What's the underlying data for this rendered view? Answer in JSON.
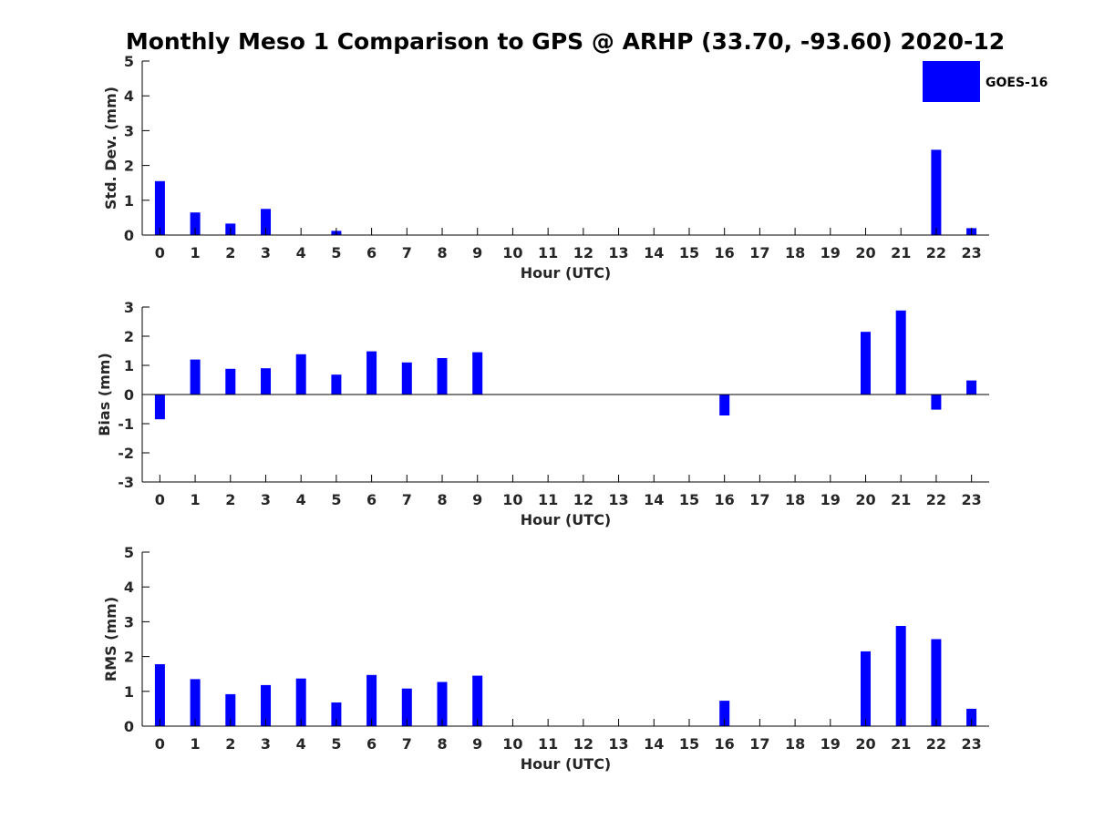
{
  "title": "Monthly Meso 1 Comparison to GPS @ ARHP (33.70, -93.60) 2020-12",
  "legend": {
    "label": "GOES-16",
    "color": "#0000ff",
    "placement": "top-right"
  },
  "chart_data": [
    {
      "type": "bar",
      "ylabel": "Std. Dev. (mm)",
      "xlabel": "Hour (UTC)",
      "ylim": [
        0,
        5
      ],
      "yticks": [
        "0",
        "1",
        "2",
        "3",
        "4",
        "5"
      ],
      "categories": [
        "0",
        "1",
        "2",
        "3",
        "4",
        "5",
        "6",
        "7",
        "8",
        "9",
        "10",
        "11",
        "12",
        "13",
        "14",
        "15",
        "16",
        "17",
        "18",
        "19",
        "20",
        "21",
        "22",
        "23"
      ],
      "series": [
        {
          "color": "#0000ff",
          "values": [
            1.55,
            0.65,
            0.33,
            0.75,
            0,
            0.12,
            0,
            0,
            0,
            0,
            0,
            0,
            0,
            0,
            0,
            0,
            0,
            0,
            0,
            0,
            0,
            0,
            2.45,
            0.2
          ]
        }
      ],
      "grid": false
    },
    {
      "type": "bar",
      "ylabel": "Bias (mm)",
      "xlabel": "Hour (UTC)",
      "ylim": [
        -3,
        3
      ],
      "yticks": [
        "-3",
        "-2",
        "-1",
        "0",
        "1",
        "2",
        "3"
      ],
      "categories": [
        "0",
        "1",
        "2",
        "3",
        "4",
        "5",
        "6",
        "7",
        "8",
        "9",
        "10",
        "11",
        "12",
        "13",
        "14",
        "15",
        "16",
        "17",
        "18",
        "19",
        "20",
        "21",
        "22",
        "23"
      ],
      "series": [
        {
          "color": "#0000ff",
          "values": [
            -0.85,
            1.2,
            0.88,
            0.9,
            1.38,
            0.68,
            1.48,
            1.1,
            1.25,
            1.45,
            0,
            0,
            0,
            0,
            0,
            0,
            -0.72,
            0,
            0,
            0,
            2.15,
            2.88,
            -0.52,
            0.48
          ]
        }
      ],
      "grid": false
    },
    {
      "type": "bar",
      "ylabel": "RMS (mm)",
      "xlabel": "Hour (UTC)",
      "ylim": [
        0,
        5
      ],
      "yticks": [
        "0",
        "1",
        "2",
        "3",
        "4",
        "5"
      ],
      "categories": [
        "0",
        "1",
        "2",
        "3",
        "4",
        "5",
        "6",
        "7",
        "8",
        "9",
        "10",
        "11",
        "12",
        "13",
        "14",
        "15",
        "16",
        "17",
        "18",
        "19",
        "20",
        "21",
        "22",
        "23"
      ],
      "series": [
        {
          "color": "#0000ff",
          "values": [
            1.78,
            1.35,
            0.92,
            1.18,
            1.37,
            0.68,
            1.47,
            1.08,
            1.27,
            1.45,
            0,
            0,
            0,
            0,
            0,
            0,
            0.73,
            0,
            0,
            0,
            2.15,
            2.88,
            2.5,
            0.5
          ]
        }
      ],
      "grid": false
    }
  ]
}
